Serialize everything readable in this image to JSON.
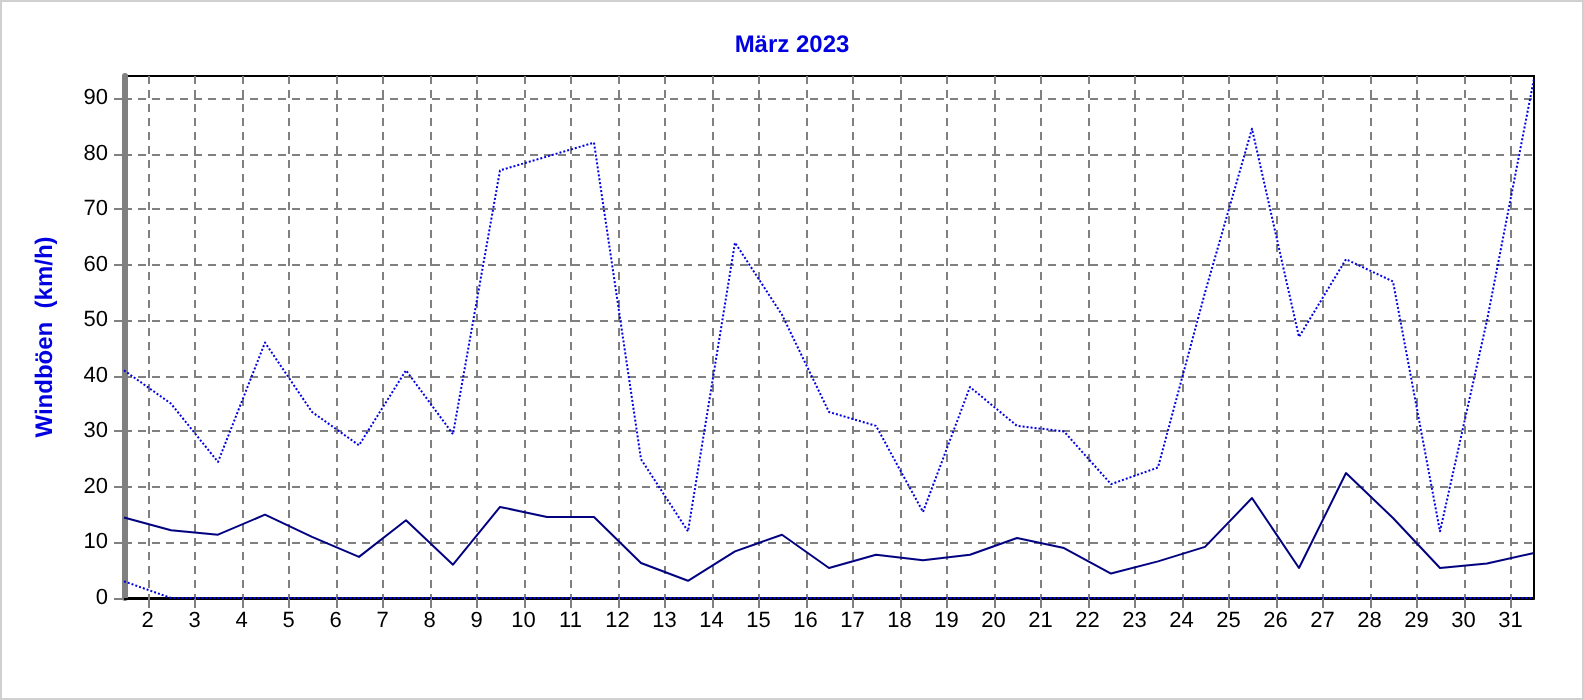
{
  "chart_data": {
    "type": "line",
    "title": "März 2023",
    "ylabel": "Windböen  (km/h)",
    "x": [
      1.5,
      2.5,
      3.5,
      4.5,
      5.5,
      6.5,
      7.5,
      8.5,
      9.5,
      10.5,
      11.5,
      12.5,
      13.5,
      14.5,
      15.5,
      16.5,
      17.5,
      18.5,
      19.5,
      20.5,
      21.5,
      22.5,
      23.5,
      24.5,
      25.5,
      26.5,
      27.5,
      28.5,
      29.5,
      30.5,
      31.5
    ],
    "xlim": [
      1.5,
      31.5
    ],
    "xticks": [
      2,
      3,
      4,
      5,
      6,
      7,
      8,
      9,
      10,
      11,
      12,
      13,
      14,
      15,
      16,
      17,
      18,
      19,
      20,
      21,
      22,
      23,
      24,
      25,
      26,
      27,
      28,
      29,
      30,
      31
    ],
    "ylim": [
      0,
      94
    ],
    "yticks": [
      0,
      10,
      20,
      30,
      40,
      50,
      60,
      70,
      80,
      90
    ],
    "grid": true,
    "marker": "none",
    "series": [
      {
        "color": "#0000e0",
        "line_style": "dotted",
        "values": [
          41,
          35,
          24.5,
          46,
          33.5,
          27.5,
          41,
          29.5,
          77,
          79.5,
          82,
          25,
          12,
          64,
          51,
          33.5,
          31,
          15.5,
          38,
          31,
          30,
          20.5,
          23.5,
          55,
          84.5,
          47,
          61,
          57,
          12,
          50,
          93.5
        ]
      },
      {
        "color": "#000080",
        "line_style": "solid",
        "values": [
          14.5,
          12.2,
          11.4,
          15,
          11,
          7.4,
          14,
          6,
          16.4,
          14.6,
          14.6,
          6.3,
          3.1,
          8.4,
          11.4,
          5.4,
          7.8,
          6.8,
          7.8,
          10.8,
          9,
          4.4,
          6.6,
          9.2,
          18,
          5.4,
          22.5,
          14.4,
          5.4,
          6.2,
          8.1
        ]
      },
      {
        "color": "#0000e0",
        "line_style": "dotted",
        "values": [
          3,
          0,
          0,
          0,
          0,
          0,
          0,
          0,
          0,
          0,
          0,
          0,
          0,
          0,
          0,
          0,
          0,
          0,
          0,
          0,
          0,
          0,
          0,
          0,
          0,
          0,
          0,
          0,
          0,
          0,
          0
        ]
      }
    ]
  }
}
